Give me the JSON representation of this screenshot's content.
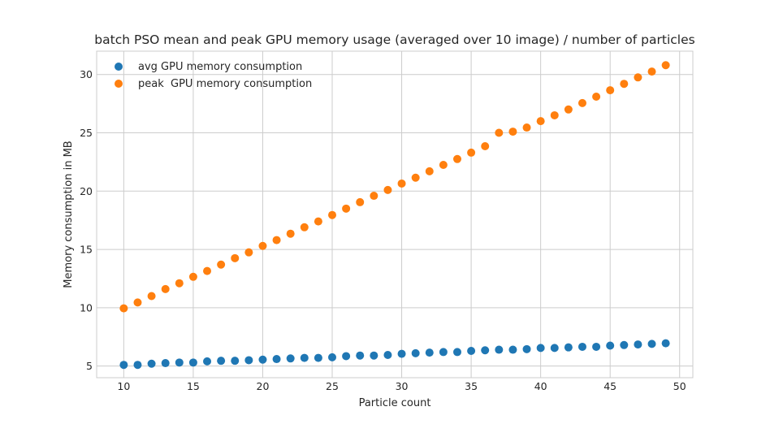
{
  "chart_data": {
    "type": "scatter",
    "title": "batch PSO mean and peak GPU memory usage (averaged over 10 image) / number of particles",
    "xlabel": "Particle count",
    "ylabel": "Memory consumption in MB",
    "xlim": [
      8.05,
      50.95
    ],
    "ylim": [
      4.0,
      32.0
    ],
    "xticks": [
      10,
      15,
      20,
      25,
      30,
      35,
      40,
      45,
      50
    ],
    "yticks": [
      5,
      10,
      15,
      20,
      25,
      30
    ],
    "grid": true,
    "legend_position": "top-left",
    "x": [
      10,
      11,
      12,
      13,
      14,
      15,
      16,
      17,
      18,
      19,
      20,
      21,
      22,
      23,
      24,
      25,
      26,
      27,
      28,
      29,
      30,
      31,
      32,
      33,
      34,
      35,
      36,
      37,
      38,
      39,
      40,
      41,
      42,
      43,
      44,
      45,
      46,
      47,
      48,
      49
    ],
    "series": [
      {
        "name": "avg GPU memory consumption",
        "color": "#1f77b4",
        "values": [
          5.1,
          5.1,
          5.2,
          5.25,
          5.3,
          5.3,
          5.4,
          5.45,
          5.45,
          5.5,
          5.55,
          5.6,
          5.65,
          5.7,
          5.7,
          5.75,
          5.85,
          5.9,
          5.9,
          5.95,
          6.05,
          6.1,
          6.15,
          6.2,
          6.2,
          6.3,
          6.35,
          6.4,
          6.4,
          6.45,
          6.55,
          6.55,
          6.6,
          6.65,
          6.65,
          6.75,
          6.8,
          6.85,
          6.9,
          6.95
        ]
      },
      {
        "name": "peak  GPU memory consumption",
        "color": "#ff7f0e",
        "values": [
          9.95,
          10.45,
          11.0,
          11.6,
          12.1,
          12.65,
          13.15,
          13.7,
          14.25,
          14.75,
          15.3,
          15.8,
          16.35,
          16.9,
          17.4,
          17.95,
          18.5,
          19.05,
          19.6,
          20.1,
          20.65,
          21.15,
          21.7,
          22.25,
          22.75,
          23.3,
          23.85,
          25.0,
          25.1,
          25.45,
          26.0,
          26.5,
          27.0,
          27.55,
          28.1,
          28.65,
          29.2,
          29.75,
          30.25,
          30.8
        ]
      }
    ]
  }
}
